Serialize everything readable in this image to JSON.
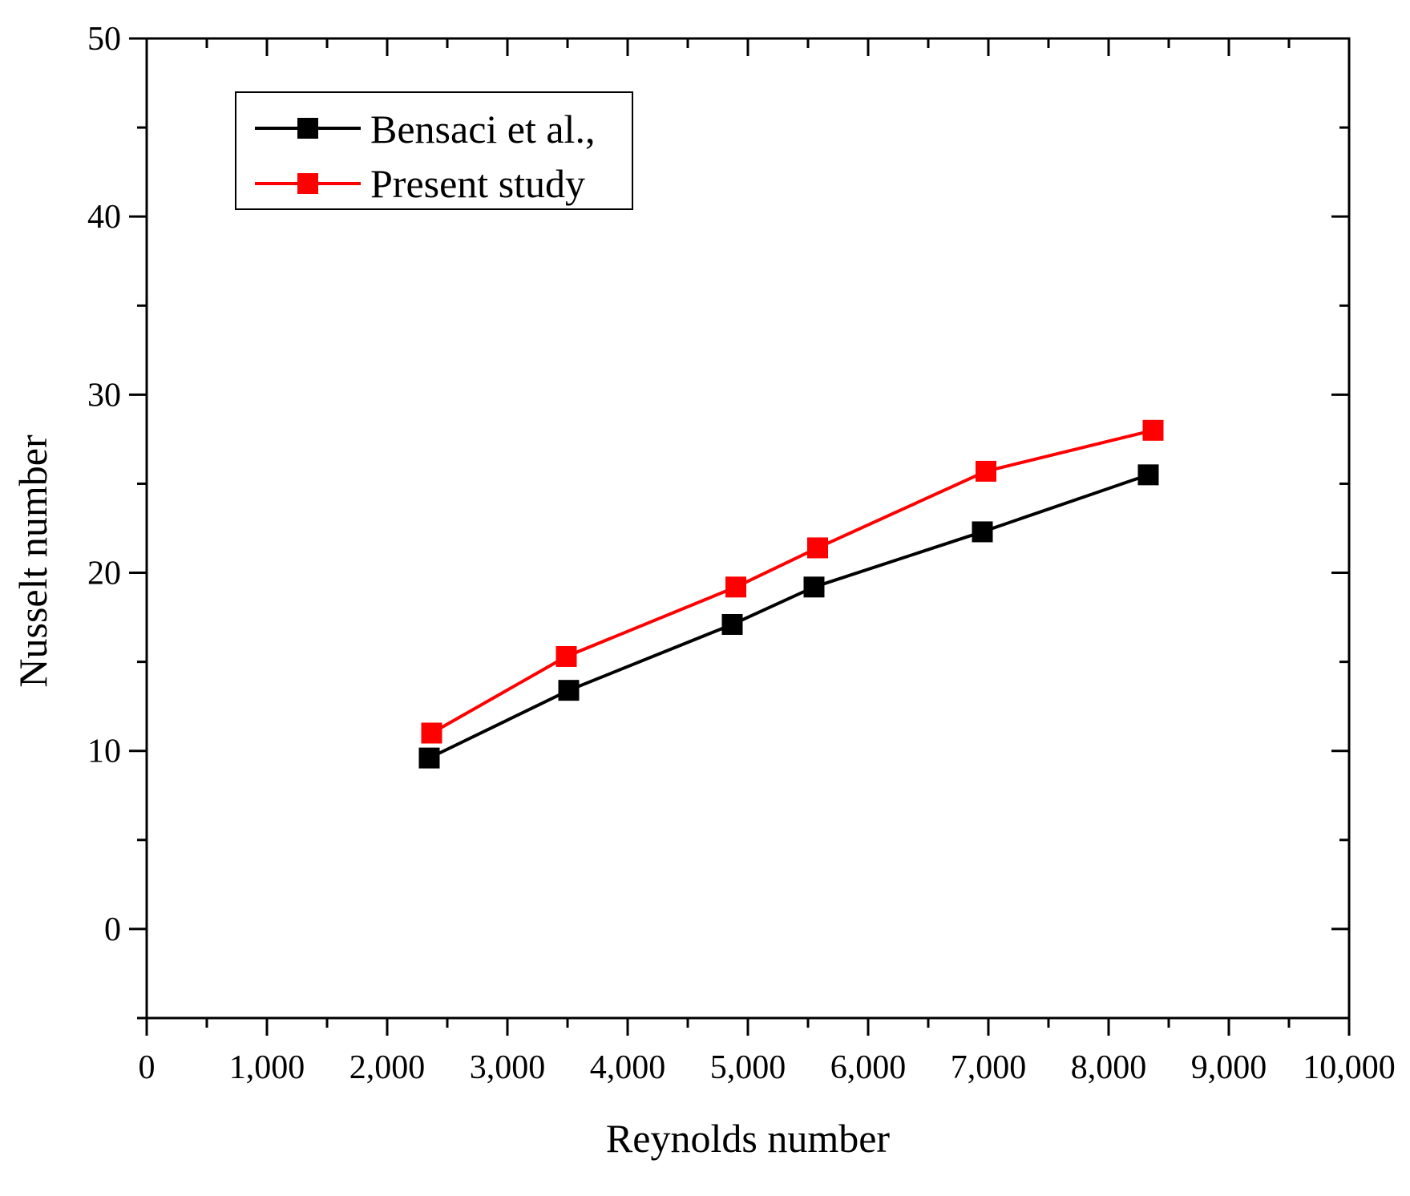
{
  "chart_data": {
    "type": "line",
    "title": "",
    "xlabel": "Reynolds number",
    "ylabel": "Nusselt number",
    "xlim": [
      0,
      10000
    ],
    "ylim": [
      -5,
      50
    ],
    "x_ticks": [
      0,
      1000,
      2000,
      3000,
      4000,
      5000,
      6000,
      7000,
      8000,
      9000,
      10000
    ],
    "x_tick_labels": [
      "0",
      "1,000",
      "2,000",
      "3,000",
      "4,000",
      "5,000",
      "6,000",
      "7,000",
      "8,000",
      "9,000",
      "10,000"
    ],
    "y_ticks": [
      0,
      10,
      20,
      30,
      40,
      50
    ],
    "y_tick_labels": [
      "0",
      "10",
      "20",
      "30",
      "40",
      "50"
    ],
    "grid": false,
    "legend_position": "top-left",
    "series": [
      {
        "name": "Bensaci et al.,",
        "color": "#000000",
        "marker": "square",
        "x": [
          2350,
          3510,
          4870,
          5550,
          6950,
          8330
        ],
        "y": [
          9.6,
          13.4,
          17.1,
          19.2,
          22.3,
          25.5
        ]
      },
      {
        "name": "Present study",
        "color": "#ff0000",
        "marker": "square",
        "x": [
          2370,
          3490,
          4900,
          5580,
          6980,
          8370
        ],
        "y": [
          11.0,
          15.3,
          19.2,
          21.4,
          25.7,
          28.0
        ]
      }
    ]
  }
}
